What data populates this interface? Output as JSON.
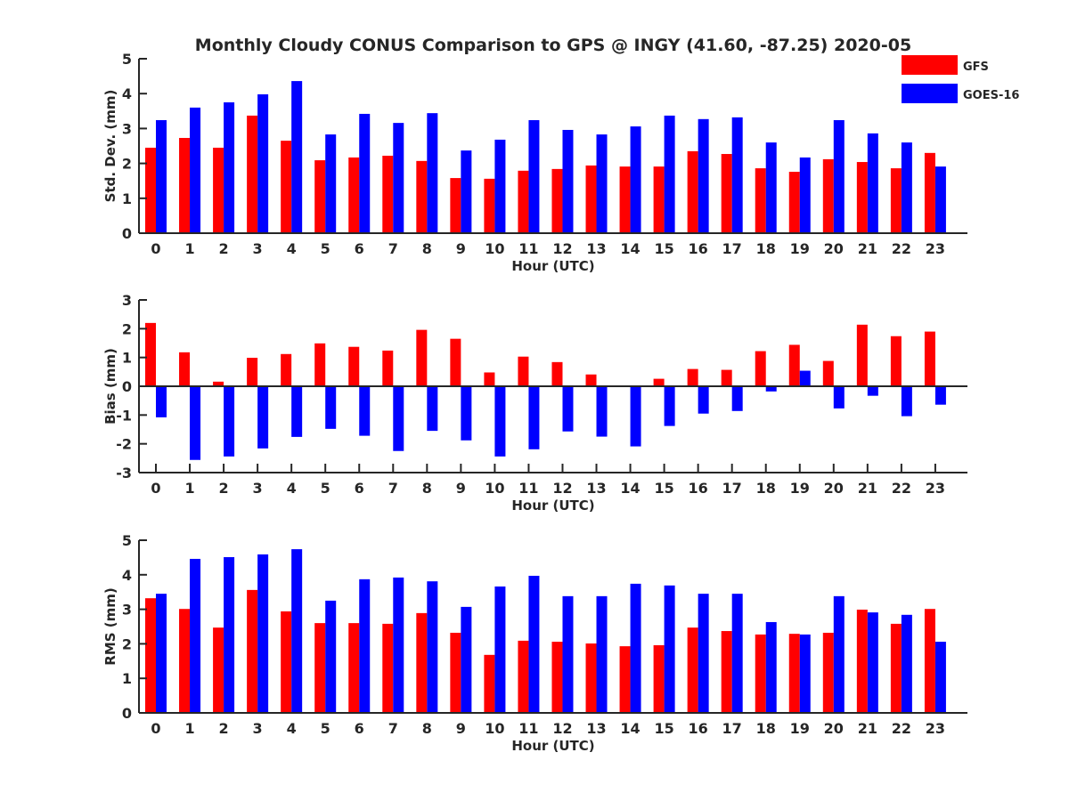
{
  "figure": {
    "title": "Monthly Cloudy CONUS Comparison to GPS @ INGY (41.60, -87.25) 2020-05",
    "legend": {
      "placement": "top-right",
      "entries": [
        {
          "label": "GFS",
          "color": "#ff0000"
        },
        {
          "label": "GOES-16",
          "color": "#0000ff"
        }
      ]
    }
  },
  "chart_data": [
    {
      "type": "bar",
      "title": "Monthly Cloudy CONUS Comparison to GPS @ INGY (41.60, -87.25) 2020-05",
      "xlabel": "Hour (UTC)",
      "ylabel": "Std. Dev. (mm)",
      "ylim": [
        0,
        5
      ],
      "yticks": [
        0,
        1,
        2,
        3,
        4,
        5
      ],
      "grid": false,
      "categories": [
        "0",
        "1",
        "2",
        "3",
        "4",
        "5",
        "6",
        "7",
        "8",
        "9",
        "10",
        "11",
        "12",
        "13",
        "14",
        "15",
        "16",
        "17",
        "18",
        "19",
        "20",
        "21",
        "22",
        "23"
      ],
      "series": [
        {
          "name": "GFS",
          "color": "#ff0000",
          "values": [
            2.45,
            2.73,
            2.45,
            3.37,
            2.65,
            2.09,
            2.17,
            2.22,
            2.07,
            1.58,
            1.56,
            1.79,
            1.84,
            1.94,
            1.91,
            1.91,
            2.35,
            2.27,
            1.86,
            1.76,
            2.12,
            2.04,
            1.86,
            2.3
          ]
        },
        {
          "name": "GOES-16",
          "color": "#0000ff",
          "values": [
            3.24,
            3.6,
            3.75,
            3.98,
            4.36,
            2.83,
            3.42,
            3.16,
            3.44,
            2.37,
            2.68,
            3.24,
            2.96,
            2.83,
            3.06,
            3.37,
            3.27,
            3.32,
            2.6,
            2.17,
            3.24,
            2.86,
            2.6,
            1.91
          ]
        }
      ]
    },
    {
      "type": "bar",
      "title": "",
      "xlabel": "Hour (UTC)",
      "ylabel": "Bias (mm)",
      "ylim": [
        -3,
        3
      ],
      "yticks": [
        -3,
        -2,
        -1,
        0,
        1,
        2,
        3
      ],
      "grid": false,
      "zero_line": true,
      "categories": [
        "0",
        "1",
        "2",
        "3",
        "4",
        "5",
        "6",
        "7",
        "8",
        "9",
        "10",
        "11",
        "12",
        "13",
        "14",
        "15",
        "16",
        "17",
        "18",
        "19",
        "20",
        "21",
        "22",
        "23"
      ],
      "series": [
        {
          "name": "GFS",
          "color": "#ff0000",
          "values": [
            2.2,
            1.18,
            0.16,
            0.99,
            1.12,
            1.49,
            1.37,
            1.24,
            1.96,
            1.65,
            0.48,
            1.03,
            0.84,
            0.41,
            -0.02,
            0.26,
            0.6,
            0.57,
            1.22,
            1.44,
            0.88,
            2.14,
            1.74,
            1.9
          ]
        },
        {
          "name": "GOES-16",
          "color": "#0000ff",
          "values": [
            -1.08,
            -2.56,
            -2.44,
            -2.16,
            -1.76,
            -1.48,
            -1.72,
            -2.25,
            -1.55,
            -1.88,
            -2.44,
            -2.19,
            -1.57,
            -1.75,
            -2.09,
            -1.38,
            -0.95,
            -0.86,
            -0.18,
            0.54,
            -0.77,
            -0.33,
            -1.04,
            -0.64
          ]
        }
      ]
    },
    {
      "type": "bar",
      "title": "",
      "xlabel": "Hour (UTC)",
      "ylabel": "RMS (mm)",
      "ylim": [
        0,
        5
      ],
      "yticks": [
        0,
        1,
        2,
        3,
        4,
        5
      ],
      "grid": false,
      "categories": [
        "0",
        "1",
        "2",
        "3",
        "4",
        "5",
        "6",
        "7",
        "8",
        "9",
        "10",
        "11",
        "12",
        "13",
        "14",
        "15",
        "16",
        "17",
        "18",
        "19",
        "20",
        "21",
        "22",
        "23"
      ],
      "series": [
        {
          "name": "GFS",
          "color": "#ff0000",
          "values": [
            3.32,
            3.01,
            2.47,
            3.56,
            2.94,
            2.6,
            2.6,
            2.58,
            2.89,
            2.32,
            1.68,
            2.09,
            2.06,
            2.01,
            1.93,
            1.96,
            2.47,
            2.37,
            2.27,
            2.29,
            2.32,
            2.99,
            2.58,
            3.01
          ]
        },
        {
          "name": "GOES-16",
          "color": "#0000ff",
          "values": [
            3.45,
            4.46,
            4.51,
            4.59,
            4.74,
            3.25,
            3.87,
            3.92,
            3.81,
            3.07,
            3.66,
            3.97,
            3.38,
            3.38,
            3.74,
            3.69,
            3.45,
            3.45,
            2.63,
            2.27,
            3.38,
            2.91,
            2.84,
            2.06
          ]
        }
      ]
    }
  ]
}
